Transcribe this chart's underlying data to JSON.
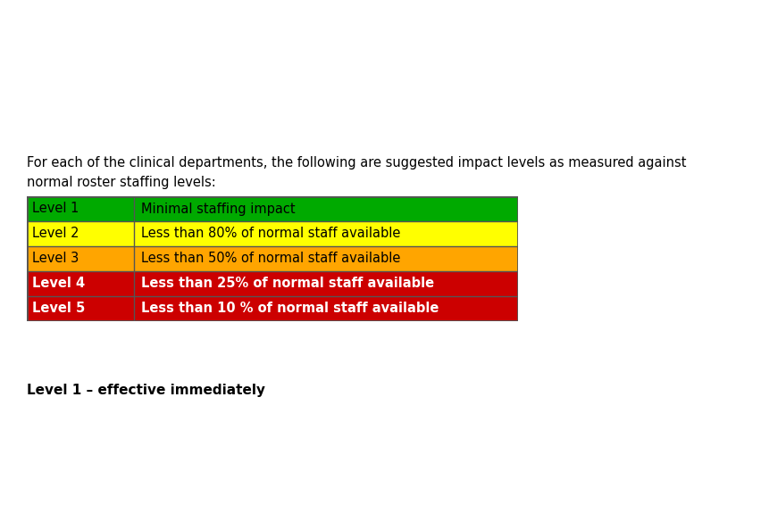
{
  "intro_text_line1": "For each of the clinical departments, the following are suggested impact levels as measured against",
  "intro_text_line2": "normal roster staffing levels:",
  "table": {
    "rows": [
      {
        "level": "Level 1",
        "description": "Minimal staffing impact",
        "bg_color": "#00AA00",
        "text_color": "#000000"
      },
      {
        "level": "Level 2",
        "description": "Less than 80% of normal staff available",
        "bg_color": "#FFFF00",
        "text_color": "#000000"
      },
      {
        "level": "Level 3",
        "description": "Less than 50% of normal staff available",
        "bg_color": "#FFA500",
        "text_color": "#000000"
      },
      {
        "level": "Level 4",
        "description": "Less than 25% of normal staff available",
        "bg_color": "#CC0000",
        "text_color": "#FFFFFF"
      },
      {
        "level": "Level 5",
        "description": "Less than 10 % of normal staff available",
        "bg_color": "#CC0000",
        "text_color": "#FFFFFF"
      }
    ],
    "border_color": "#555555"
  },
  "footer_text": "Level 1 – effective immediately",
  "background_color": "#FFFFFF",
  "intro_fontsize": 10.5,
  "table_fontsize": 10.5,
  "footer_fontsize": 11
}
